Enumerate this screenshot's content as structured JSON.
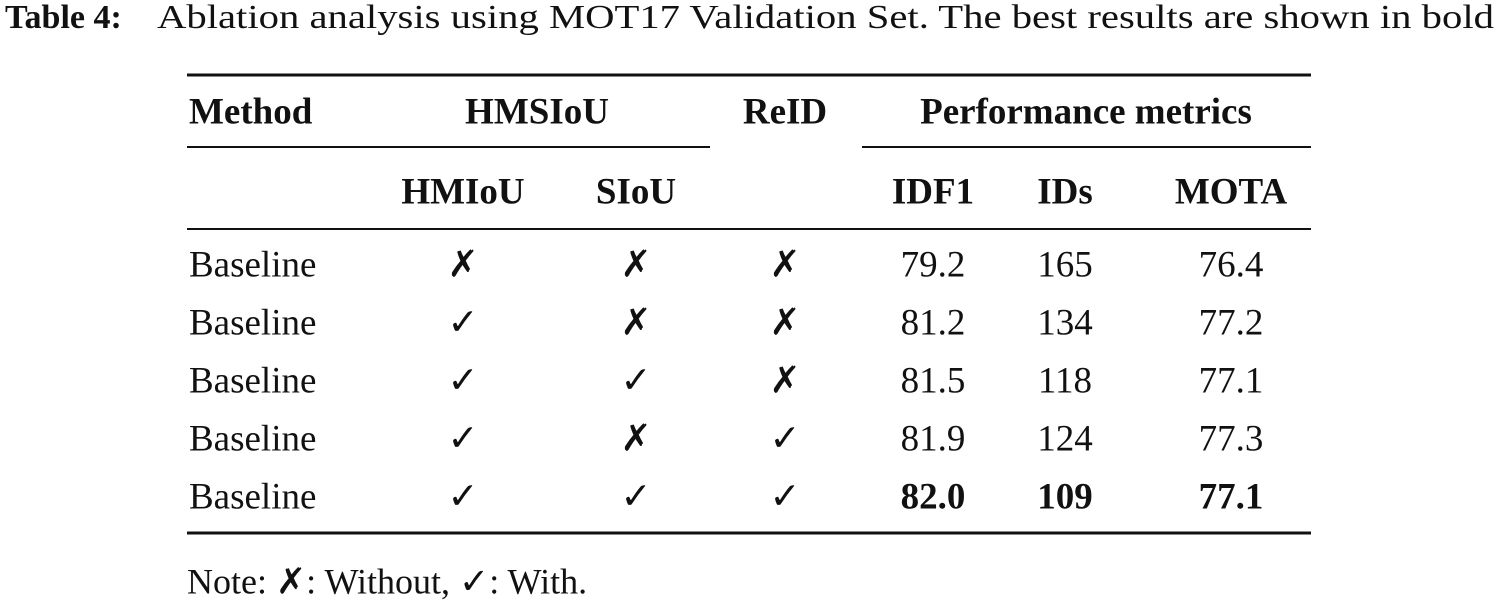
{
  "caption": {
    "label": "Table 4:",
    "text": "Ablation analysis using MOT17 Validation Set. The best results are shown in bold"
  },
  "table": {
    "header_top": [
      "Method",
      "HMSIoU",
      "ReID",
      "Performance metrics"
    ],
    "header_sub": [
      "HMIoU",
      "SIoU",
      "IDF1",
      "IDs",
      "MOTA"
    ],
    "rows": [
      [
        "Baseline",
        "✗",
        "✗",
        "✗",
        "79.2",
        "165",
        "76.4"
      ],
      [
        "Baseline",
        "✓",
        "✗",
        "✗",
        "81.2",
        "134",
        "77.2"
      ],
      [
        "Baseline",
        "✓",
        "✓",
        "✗",
        "81.5",
        "118",
        "77.1"
      ],
      [
        "Baseline",
        "✓",
        "✗",
        "✓",
        "81.9",
        "124",
        "77.3"
      ],
      [
        "Baseline",
        "✓",
        "✓",
        "✓",
        "82.0",
        "109",
        "77.1"
      ]
    ]
  },
  "note": "Note: ✗: Without, ✓: With."
}
